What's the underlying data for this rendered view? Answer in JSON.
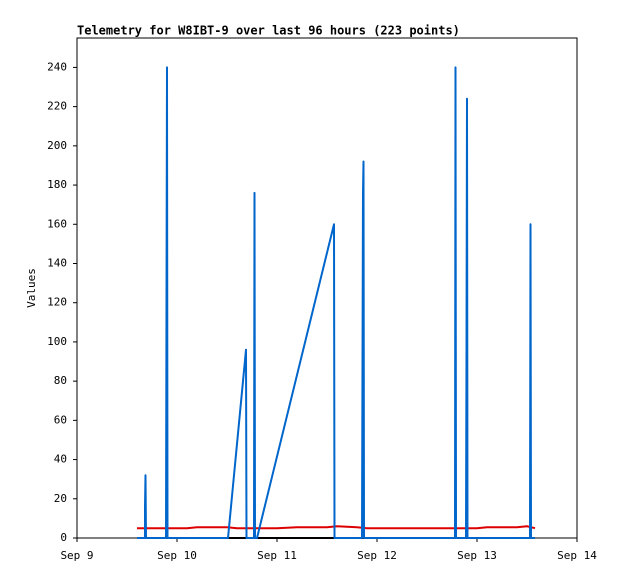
{
  "chart_data": {
    "type": "line",
    "title": "Telemetry for W8IBT-9 over last 96 hours (223 points)",
    "y_label": "Values",
    "xlim": [
      9,
      14
    ],
    "xticks": [
      {
        "value": 9,
        "label": "Sep 9"
      },
      {
        "value": 10,
        "label": "Sep 10"
      },
      {
        "value": 11,
        "label": "Sep 11"
      },
      {
        "value": 12,
        "label": "Sep 12"
      },
      {
        "value": 13,
        "label": "Sep 13"
      },
      {
        "value": 14,
        "label": "Sep 14"
      }
    ],
    "ylim": [
      0,
      255
    ],
    "yticks": [
      0,
      20,
      40,
      60,
      80,
      100,
      120,
      140,
      160,
      180,
      200,
      220,
      240
    ],
    "series": [
      {
        "color": "#000000",
        "x": [
          9.6,
          13.58
        ],
        "values": [
          0,
          0
        ]
      },
      {
        "color": "#dd0000",
        "x": [
          9.6,
          10.1,
          10.2,
          10.5,
          10.6,
          11.0,
          11.2,
          11.5,
          11.6,
          11.8,
          11.9,
          12.5,
          12.7,
          13.0,
          13.1,
          13.4,
          13.5,
          13.58
        ],
        "values": [
          5,
          5,
          5.5,
          5.5,
          5,
          5,
          5.5,
          5.5,
          6,
          5.5,
          5,
          5,
          5,
          5,
          5.5,
          5.5,
          6,
          5
        ]
      },
      {
        "color": "#0066cc",
        "x": [
          9.6,
          9.68,
          9.68,
          9.685,
          9.69,
          9.89,
          9.895,
          9.9,
          9.905,
          10.51,
          10.69,
          10.695,
          10.77,
          10.775,
          10.78,
          10.8,
          11.57,
          11.575,
          11.85,
          11.855,
          11.86,
          11.865,
          11.87,
          12.78,
          12.785,
          12.79,
          12.89,
          12.895,
          12.9,
          12.905,
          13.53,
          13.535,
          13.54,
          13.58
        ],
        "values": [
          0,
          0,
          16,
          32,
          0,
          0,
          120,
          240,
          0,
          0,
          96,
          0,
          0,
          176,
          0,
          0,
          160,
          0,
          0,
          88,
          176,
          192,
          0,
          0,
          240,
          0,
          0,
          96,
          224,
          0,
          0,
          160,
          0,
          0
        ]
      }
    ]
  }
}
